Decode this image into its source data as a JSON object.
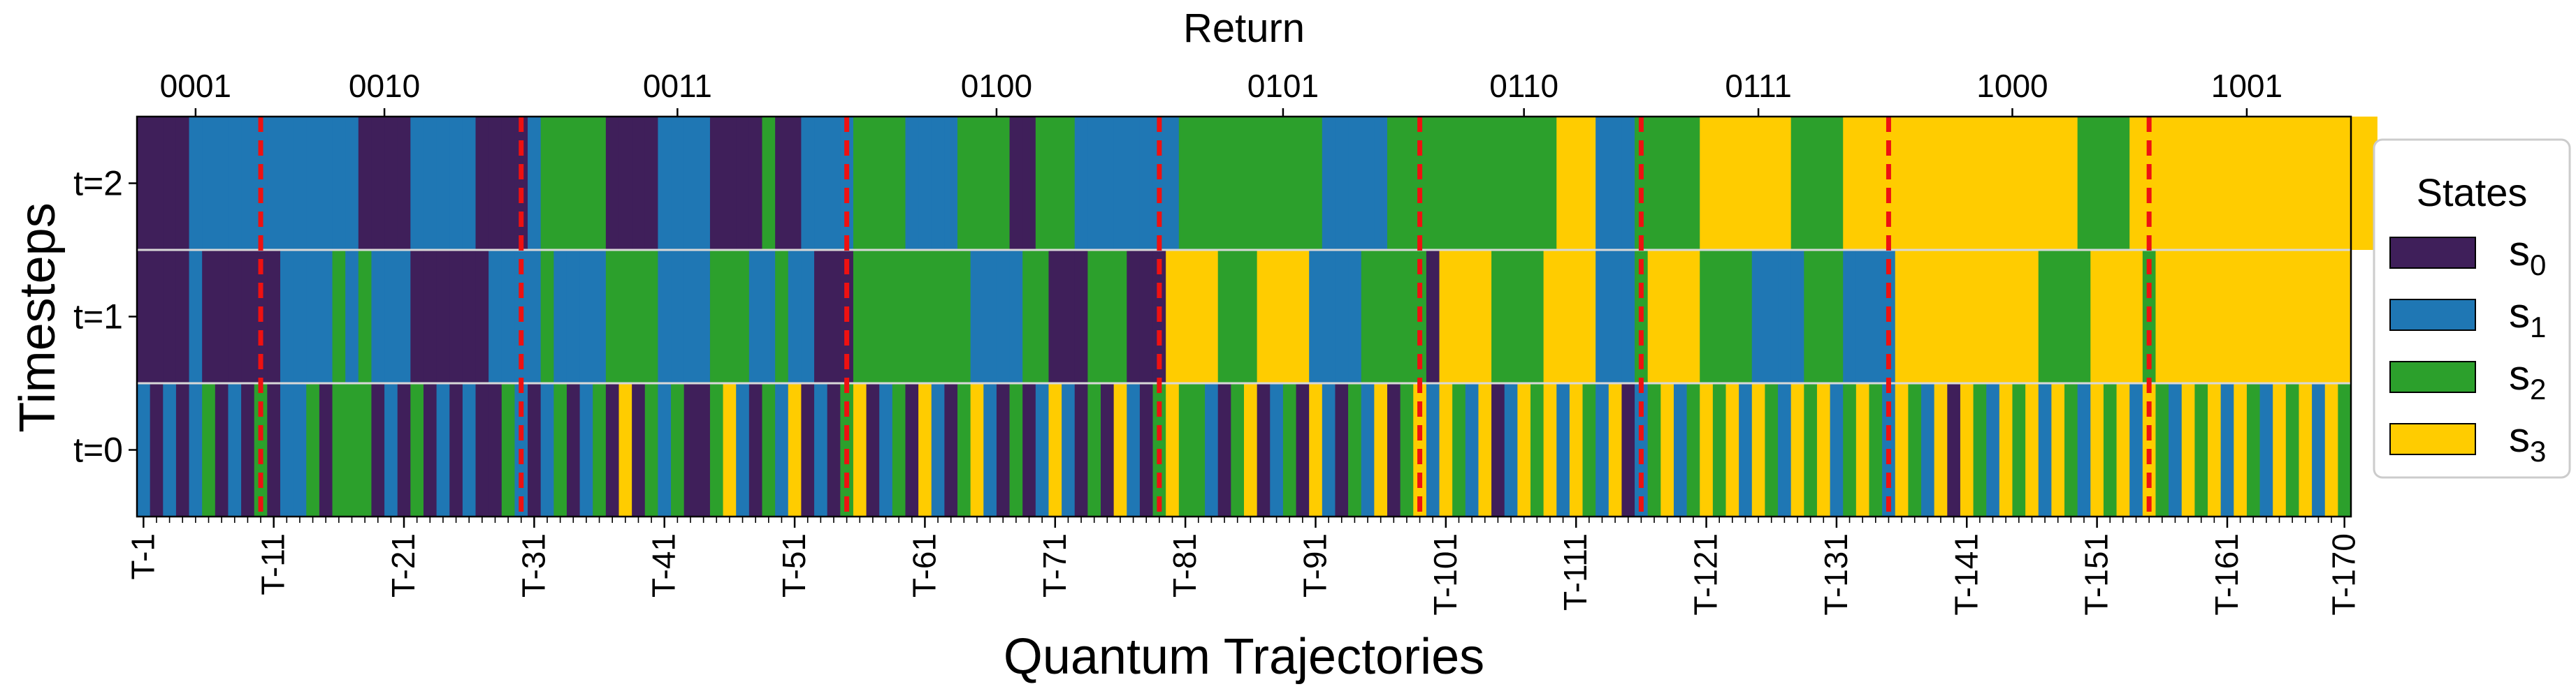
{
  "chart_data": {
    "type": "heatmap",
    "title": "",
    "xlabel": "Quantum Trajectories",
    "ylabel": "Timesteps",
    "top_axis_label": "Return",
    "n_trajectories": 170,
    "row_labels": [
      "t=2",
      "t=1",
      "t=0"
    ],
    "x_tick_labels": [
      "T-1",
      "T-11",
      "T-21",
      "T-31",
      "T-41",
      "T-51",
      "T-61",
      "T-71",
      "T-81",
      "T-91",
      "T-101",
      "T-111",
      "T-121",
      "T-131",
      "T-141",
      "T-151",
      "T-161",
      "T-170"
    ],
    "legend": {
      "title": "States",
      "placement": "right",
      "entries": [
        {
          "base": "s",
          "sub": "0",
          "color": "#3f1f5a"
        },
        {
          "base": "s",
          "sub": "1",
          "color": "#1f77b4"
        },
        {
          "base": "s",
          "sub": "2",
          "color": "#2ca02c"
        },
        {
          "base": "s",
          "sub": "3",
          "color": "#ffcc00"
        }
      ]
    },
    "return_groups": [
      {
        "label": "0001",
        "start": 1,
        "end": 9
      },
      {
        "label": "0010",
        "start": 10,
        "end": 29
      },
      {
        "label": "0011",
        "start": 30,
        "end": 54
      },
      {
        "label": "0100",
        "start": 55,
        "end": 78
      },
      {
        "label": "0101",
        "start": 79,
        "end": 98
      },
      {
        "label": "0110",
        "start": 99,
        "end": 115
      },
      {
        "label": "0111",
        "start": 116,
        "end": 134
      },
      {
        "label": "1000",
        "start": 135,
        "end": 154
      },
      {
        "label": "1001",
        "start": 155,
        "end": 170
      }
    ],
    "return_tick_positions": [
      5,
      19.5,
      42,
      66.5,
      88.5,
      107,
      125,
      144.5,
      162.5
    ],
    "group_boundaries": [
      9.5,
      29.5,
      54.5,
      78.5,
      98.5,
      115.5,
      134.5,
      154.5
    ],
    "states": {
      "t=2": [
        0,
        0,
        0,
        0,
        1,
        1,
        1,
        1,
        1,
        1,
        1,
        1,
        1,
        1,
        1,
        1,
        1,
        0,
        0,
        0,
        0,
        1,
        1,
        1,
        1,
        1,
        0,
        0,
        0,
        0,
        1,
        2,
        2,
        2,
        2,
        2,
        0,
        0,
        0,
        0,
        1,
        1,
        1,
        1,
        0,
        0,
        0,
        0,
        2,
        0,
        0,
        1,
        1,
        1,
        1,
        2,
        2,
        2,
        2,
        1,
        1,
        1,
        1,
        2,
        2,
        2,
        2,
        0,
        0,
        2,
        2,
        2,
        1,
        1,
        1,
        1,
        1,
        1,
        1,
        1,
        2,
        2,
        2,
        2,
        2,
        2,
        2,
        2,
        2,
        2,
        2,
        1,
        1,
        1,
        1,
        1,
        2,
        2,
        2,
        2,
        2,
        2,
        2,
        2,
        2,
        2,
        2,
        2,
        2,
        3,
        3,
        3,
        1,
        1,
        1,
        2,
        2,
        2,
        2,
        2,
        3,
        3,
        3,
        3,
        3,
        3,
        3,
        2,
        2,
        2,
        2,
        3,
        3,
        3,
        3,
        3,
        3,
        3,
        3,
        3,
        3,
        3,
        3,
        3,
        3,
        3,
        3,
        3,
        3,
        2,
        2,
        2,
        2,
        3,
        3,
        3,
        3,
        3,
        3,
        3,
        3,
        3,
        3,
        3,
        3,
        3,
        3,
        3,
        3,
        3,
        3,
        3
      ],
      "t=1": [
        0,
        0,
        0,
        0,
        1,
        0,
        0,
        0,
        0,
        0,
        0,
        1,
        1,
        1,
        1,
        2,
        1,
        2,
        1,
        1,
        1,
        0,
        0,
        0,
        0,
        0,
        0,
        1,
        1,
        1,
        1,
        2,
        1,
        1,
        1,
        1,
        2,
        2,
        2,
        2,
        1,
        1,
        1,
        1,
        2,
        2,
        2,
        1,
        1,
        2,
        1,
        1,
        0,
        0,
        0,
        2,
        2,
        2,
        2,
        2,
        2,
        2,
        2,
        2,
        1,
        1,
        1,
        1,
        2,
        2,
        0,
        0,
        0,
        2,
        2,
        2,
        0,
        0,
        0,
        3,
        3,
        3,
        3,
        2,
        2,
        2,
        3,
        3,
        3,
        3,
        1,
        1,
        1,
        1,
        2,
        2,
        2,
        2,
        2,
        0,
        3,
        3,
        3,
        3,
        2,
        2,
        2,
        2,
        3,
        3,
        3,
        3,
        1,
        1,
        1,
        2,
        3,
        3,
        3,
        3,
        2,
        2,
        2,
        2,
        1,
        1,
        1,
        1,
        2,
        2,
        2,
        1,
        1,
        1,
        1,
        3,
        3,
        3,
        3,
        3,
        3,
        3,
        3,
        3,
        3,
        3,
        2,
        2,
        2,
        2,
        3,
        3,
        3,
        3,
        2,
        3,
        3,
        3,
        3,
        3,
        3,
        3,
        3,
        3,
        3,
        3,
        3,
        3,
        3,
        3
      ],
      "t=0": [
        1,
        0,
        1,
        0,
        1,
        2,
        0,
        1,
        0,
        2,
        0,
        1,
        1,
        2,
        0,
        2,
        2,
        2,
        0,
        1,
        0,
        2,
        0,
        1,
        0,
        1,
        0,
        0,
        2,
        1,
        0,
        1,
        2,
        0,
        1,
        2,
        0,
        3,
        0,
        2,
        1,
        2,
        0,
        0,
        2,
        3,
        1,
        0,
        2,
        1,
        3,
        0,
        1,
        0,
        2,
        3,
        0,
        1,
        2,
        0,
        3,
        1,
        0,
        2,
        3,
        1,
        0,
        2,
        0,
        1,
        3,
        1,
        0,
        2,
        0,
        3,
        1,
        0,
        2,
        3,
        2,
        2,
        1,
        0,
        2,
        3,
        0,
        1,
        2,
        0,
        3,
        1,
        0,
        2,
        1,
        3,
        0,
        2,
        3,
        1,
        3,
        2,
        1,
        3,
        0,
        1,
        3,
        2,
        3,
        1,
        3,
        2,
        1,
        3,
        0,
        1,
        2,
        3,
        1,
        2,
        3,
        2,
        3,
        1,
        3,
        2,
        1,
        3,
        2,
        3,
        1,
        2,
        3,
        2,
        1,
        3,
        2,
        1,
        3,
        0,
        3,
        2,
        1,
        3,
        2,
        3,
        1,
        3,
        2,
        1,
        3,
        2,
        3,
        1,
        3,
        2,
        1,
        3,
        2,
        3,
        1,
        3,
        2,
        1,
        3,
        2,
        3,
        1,
        3,
        2
      ]
    }
  }
}
